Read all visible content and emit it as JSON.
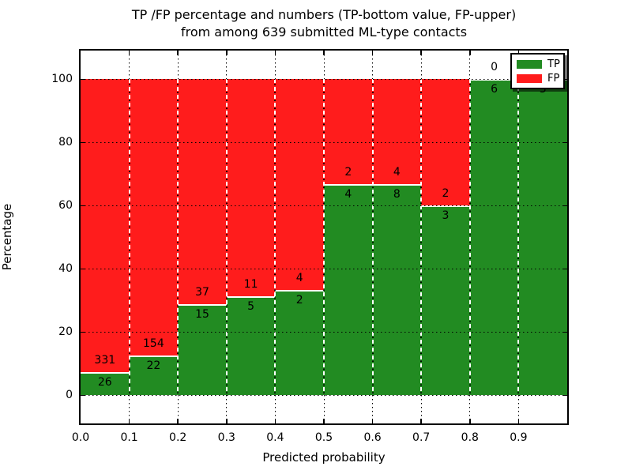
{
  "chart_data": {
    "type": "bar",
    "stacked": true,
    "percentage": true,
    "title_line1": "TP /FP percentage and numbers (TP-bottom value, FP-upper)",
    "title_line2": "from among 639 submitted ML-type contacts",
    "xlabel": "Predicted probability",
    "ylabel": "Percentage",
    "x_tick_labels": [
      "0.0",
      "0.1",
      "0.2",
      "0.3",
      "0.4",
      "0.5",
      "0.6",
      "0.7",
      "0.8",
      "0.9"
    ],
    "y_ticks": [
      0,
      20,
      40,
      60,
      80,
      100
    ],
    "xlim": [
      0.0,
      1.0
    ],
    "ylim_display": [
      -9,
      109
    ],
    "bin_width": 0.1,
    "grid_style": "dotted",
    "total_contacts": 639,
    "categories": [
      "0.0-0.1",
      "0.1-0.2",
      "0.2-0.3",
      "0.3-0.4",
      "0.4-0.5",
      "0.5-0.6",
      "0.6-0.7",
      "0.7-0.8",
      "0.8-0.9",
      "0.9-1.0"
    ],
    "series": [
      {
        "name": "TP",
        "color": "#228B22",
        "values": [
          26,
          22,
          15,
          5,
          2,
          4,
          8,
          3,
          6,
          3
        ]
      },
      {
        "name": "FP",
        "color": "#FF1C1C",
        "values": [
          331,
          154,
          37,
          11,
          4,
          2,
          4,
          2,
          0,
          0
        ]
      }
    ],
    "tp_percent": [
      7.28,
      12.5,
      28.85,
      31.25,
      33.33,
      66.67,
      66.67,
      60.0,
      100.0,
      100.0
    ],
    "legend": {
      "position": "upper right",
      "entries": [
        {
          "label": "TP",
          "color": "#228B22"
        },
        {
          "label": "FP",
          "color": "#FF1C1C"
        }
      ]
    },
    "colors": {
      "tp": "#228B22",
      "fp": "#FF1C1C",
      "grid": "#000000",
      "background": "#ffffff",
      "separator": "#ffffff"
    }
  }
}
